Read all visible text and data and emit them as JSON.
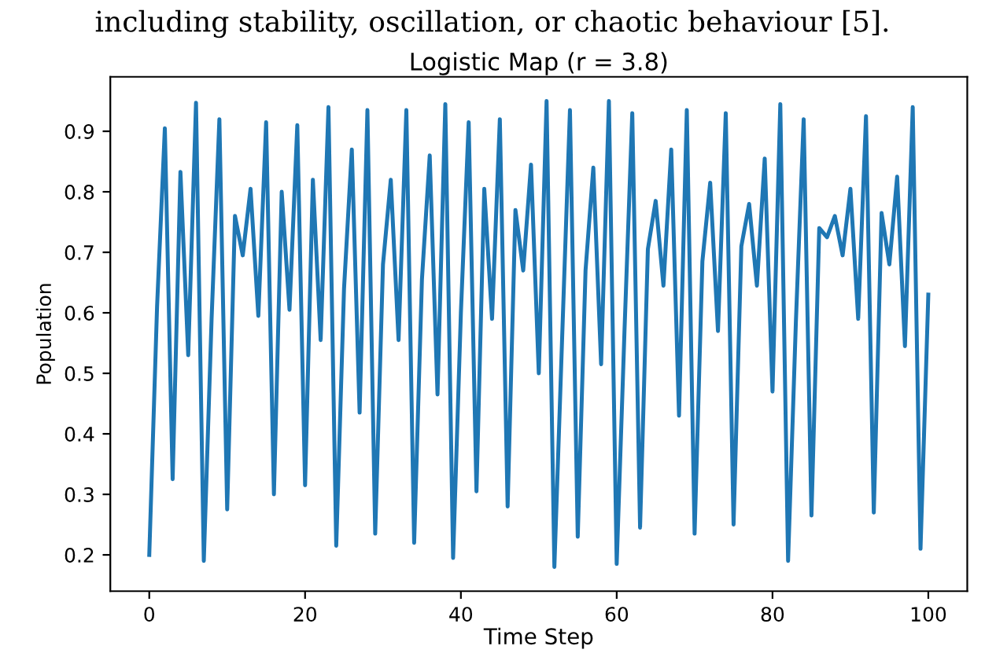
{
  "chart_data": {
    "type": "line",
    "title": "Logistic Map (r = 3.8)",
    "xlabel": "Time Step",
    "ylabel": "Population",
    "annotations": [
      "including stability, oscillation, or chaotic behaviour [5]."
    ],
    "x": [
      0,
      1,
      2,
      3,
      4,
      5,
      6,
      7,
      8,
      9,
      10,
      11,
      12,
      13,
      14,
      15,
      16,
      17,
      18,
      19,
      20,
      21,
      22,
      23,
      24,
      25,
      26,
      27,
      28,
      29,
      30,
      31,
      32,
      33,
      34,
      35,
      36,
      37,
      38,
      39,
      40,
      41,
      42,
      43,
      44,
      45,
      46,
      47,
      48,
      49,
      50,
      51,
      52,
      53,
      54,
      55,
      56,
      57,
      58,
      59,
      60,
      61,
      62,
      63,
      64,
      65,
      66,
      67,
      68,
      69,
      70,
      71,
      72,
      73,
      74,
      75,
      76,
      77,
      78,
      79,
      80,
      81,
      82,
      83,
      84,
      85,
      86,
      87,
      88,
      89,
      90,
      91,
      92,
      93,
      94,
      95,
      96,
      97,
      98,
      99,
      100
    ],
    "series": [
      {
        "color": "#1f77b4",
        "values": [
          0.2,
          0.61,
          0.905,
          0.325,
          0.833,
          0.53,
          0.947,
          0.19,
          0.59,
          0.92,
          0.275,
          0.76,
          0.695,
          0.805,
          0.595,
          0.915,
          0.3,
          0.8,
          0.605,
          0.91,
          0.315,
          0.82,
          0.555,
          0.94,
          0.215,
          0.64,
          0.87,
          0.435,
          0.935,
          0.235,
          0.68,
          0.82,
          0.555,
          0.935,
          0.22,
          0.655,
          0.86,
          0.465,
          0.945,
          0.195,
          0.6,
          0.915,
          0.305,
          0.805,
          0.59,
          0.92,
          0.28,
          0.77,
          0.67,
          0.845,
          0.5,
          0.95,
          0.18,
          0.56,
          0.935,
          0.23,
          0.67,
          0.84,
          0.515,
          0.95,
          0.185,
          0.57,
          0.93,
          0.245,
          0.705,
          0.785,
          0.645,
          0.87,
          0.43,
          0.935,
          0.235,
          0.685,
          0.815,
          0.57,
          0.93,
          0.25,
          0.71,
          0.78,
          0.645,
          0.855,
          0.47,
          0.945,
          0.19,
          0.585,
          0.92,
          0.265,
          0.74,
          0.725,
          0.76,
          0.695,
          0.805,
          0.59,
          0.925,
          0.27,
          0.765,
          0.68,
          0.825,
          0.545,
          0.94,
          0.21,
          0.63
        ]
      }
    ],
    "xlim": [
      -5,
      105
    ],
    "ylim": [
      0.14,
      0.99
    ],
    "xticks": [
      0,
      20,
      40,
      60,
      80,
      100
    ],
    "yticks": [
      0.2,
      0.3,
      0.4,
      0.5,
      0.6,
      0.7,
      0.8,
      0.9
    ],
    "grid": false,
    "legend": false,
    "marker": "none",
    "line_style": "solid"
  }
}
